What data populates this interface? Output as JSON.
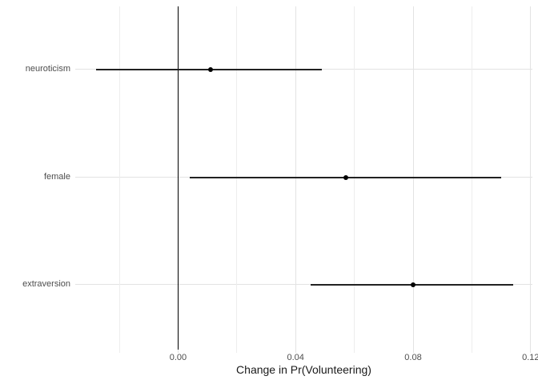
{
  "chart_data": {
    "type": "scatter",
    "subtype": "dot-and-whisker coefficient plot with horizontal error bars",
    "title": "",
    "xlabel": "Change in Pr(Volunteering)",
    "ylabel": "",
    "categories": [
      "neuroticism",
      "female",
      "extraversion"
    ],
    "points": [
      {
        "label": "neuroticism",
        "estimate": 0.011,
        "ci_low": -0.028,
        "ci_high": 0.049
      },
      {
        "label": "female",
        "estimate": 0.057,
        "ci_low": 0.004,
        "ci_high": 0.11
      },
      {
        "label": "extraversion",
        "estimate": 0.08,
        "ci_low": 0.045,
        "ci_high": 0.114
      }
    ],
    "x_ticks": [
      0,
      0.04,
      0.08,
      0.12
    ],
    "x_tick_labels": [
      "0.00",
      "0.04",
      "0.08",
      "0.12"
    ],
    "x_minor_ticks": [
      -0.02,
      0.02,
      0.06,
      0.1
    ],
    "xlim": [
      -0.035,
      0.1206
    ],
    "reference_line_x": 0,
    "grid": "vertical major and minor gridlines; horizontal gridline at each category row",
    "legend": false,
    "colors": {
      "point": "#000000",
      "line": "#222222",
      "reference_line": "#000000",
      "grid_major": "#e3e3e3",
      "grid_minor": "#ededed",
      "text": "#4d4d4d",
      "axis_title": "#1a1a1a",
      "background": "#ffffff"
    }
  }
}
